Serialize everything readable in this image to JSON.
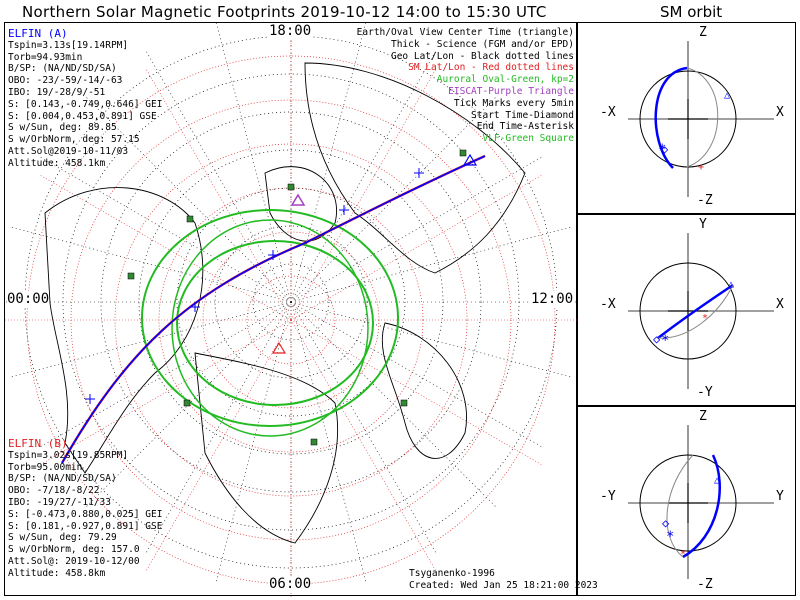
{
  "title": "Northern Solar Magnetic Footprints 2019-10-12 14:00 to 15:30 UTC",
  "orbit_title": "SM orbit",
  "map": {
    "time_labels": {
      "top": "18:00",
      "left": "00:00",
      "right": "12:00",
      "bottom": "06:00"
    },
    "legend": [
      {
        "text": "Earth/Oval View Center Time (triangle)",
        "color": "#000000"
      },
      {
        "text": "Thick - Science (FGM and/or EPD)",
        "color": "#000000"
      },
      {
        "text": "Geo Lat/Lon - Black dotted lines",
        "color": "#000000"
      },
      {
        "text": "SM Lat/Lon - Red dotted lines",
        "color": "#e02020"
      },
      {
        "text": "Auroral Oval-Green, kp=2",
        "color": "#22bb22"
      },
      {
        "text": "EISCAT-Purple Triangle",
        "color": "#a040c0"
      },
      {
        "text": "Tick Marks every 5min",
        "color": "#000000"
      },
      {
        "text": "Start Time-Diamond",
        "color": "#000000"
      },
      {
        "text": "End Time-Asterisk",
        "color": "#000000"
      },
      {
        "text": "VLF-Green Square",
        "color": "#22bb22"
      }
    ],
    "elfin_a": {
      "name": "ELFIN (A)",
      "color": "#0000ff",
      "lines": [
        "Tspin=3.13s[19.14RPM]",
        "Torb=94.93min",
        "B/SP: (NA/ND/SD/SA)",
        "OBO: -23/-59/-14/-63",
        "IBO: 19/-28/9/-51",
        "S: [0.143,-0.749,0.646] GEI",
        "S: [0.004,0.453,0.891] GSE",
        "S w/Sun, deg: 89.85",
        "S w/OrbNorm, deg: 57.15",
        "Att.Sol@2019-10-11/03",
        "Altitude: 458.1km"
      ]
    },
    "elfin_b": {
      "name": "ELFIN (B)",
      "color": "#e02020",
      "lines": [
        "Tspin=3.02s[19.85RPM]",
        "Torb=95.00min",
        "B/SP: (NA/ND/SD/SA)",
        "OBO: -7/18/-8/22",
        "IBO: -19/27/-11/33",
        "S: [-0.473,0.880,0.025] GEI",
        "S: [0.181,-0.927,0.891] GSE",
        "S w/Sun, deg: 79.29",
        "S w/OrbNorm, deg: 157.0",
        "Att.Sol@: 2019-10-12/00",
        "Altitude: 458.8km"
      ]
    },
    "footer": {
      "model": "Tsyganenko-1996",
      "created": "Created: Wed Jan 25 18:21:00 2023"
    }
  },
  "orbit_panels": [
    {
      "name": "xz",
      "top": "Z",
      "bottom": "-Z",
      "left": "-X",
      "right": "X"
    },
    {
      "name": "xy",
      "top": "Y",
      "bottom": "-Y",
      "left": "-X",
      "right": "X"
    },
    {
      "name": "yz",
      "top": "Z",
      "bottom": "-Z",
      "left": "-Y",
      "right": "Y"
    }
  ],
  "colors": {
    "elfin_a": "#0000ff",
    "elfin_b": "#e02020",
    "oval": "#22bb22",
    "vlf": "#338833",
    "eiscat": "#a040c0",
    "grid_geo": "#000000",
    "grid_sm": "#e02020"
  }
}
